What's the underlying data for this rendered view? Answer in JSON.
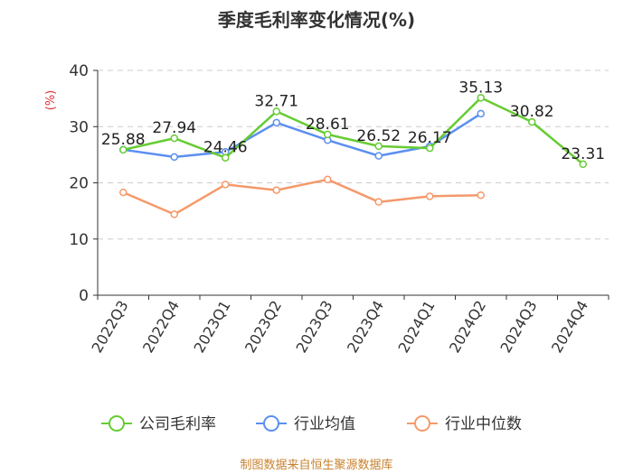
{
  "colors": {
    "company": "#66cc33",
    "industry_avg": "#5b8ff0",
    "industry_median": "#f5996a",
    "grid": "#cccccc",
    "axis": "#333333",
    "unit": "#e03030",
    "footer": "#c8822e"
  },
  "footer": {
    "source": "制图数据来自恒生聚源数据库"
  },
  "chart_data": {
    "type": "line",
    "title": "季度毛利率变化情况(%)",
    "ylabel": "(%)",
    "xlabel": "",
    "ylim": [
      0,
      40
    ],
    "yticks": [
      0,
      10,
      20,
      30,
      40
    ],
    "grid": true,
    "legend_position": "bottom",
    "categories": [
      "2022Q3",
      "2022Q4",
      "2023Q1",
      "2023Q2",
      "2023Q3",
      "2023Q4",
      "2024Q1",
      "2024Q2",
      "2024Q3",
      "2024Q4"
    ],
    "series": [
      {
        "name": "公司毛利率",
        "color": "#66cc33",
        "labeled": true,
        "values": [
          25.88,
          27.94,
          24.46,
          32.71,
          28.61,
          26.52,
          26.17,
          35.13,
          30.82,
          23.31
        ]
      },
      {
        "name": "行业均值",
        "color": "#5b8ff0",
        "labeled": false,
        "values": [
          25.9,
          24.6,
          25.5,
          30.7,
          27.6,
          24.8,
          26.5,
          32.3,
          null,
          null
        ]
      },
      {
        "name": "行业中位数",
        "color": "#f5996a",
        "labeled": false,
        "values": [
          18.3,
          14.4,
          19.7,
          18.7,
          20.6,
          16.6,
          17.6,
          17.8,
          null,
          null
        ]
      }
    ]
  }
}
